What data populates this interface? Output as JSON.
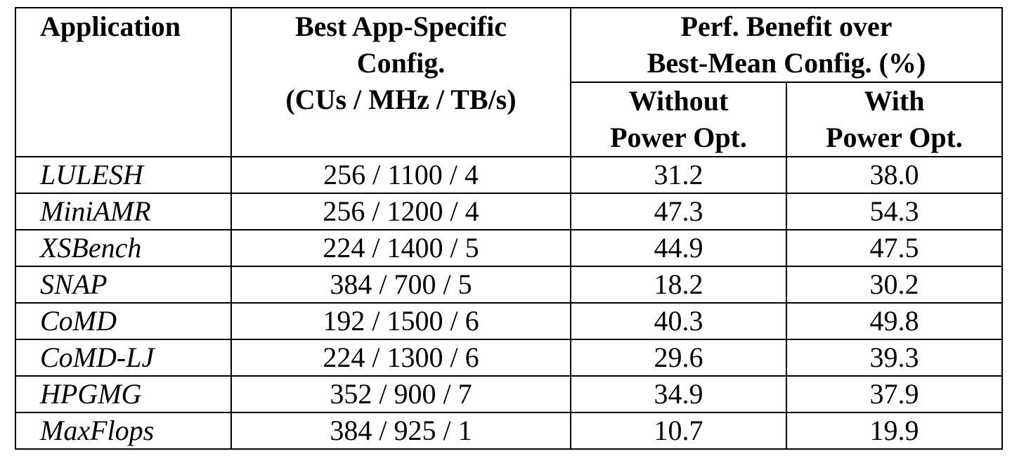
{
  "table": {
    "headers": {
      "application": "Application",
      "config_line1": "Best App-Specific",
      "config_line2": "Config.",
      "config_line3": "(CUs / MHz / TB/s)",
      "benefit_line1": "Perf. Benefit over",
      "benefit_line2": "Best-Mean Config. (%)",
      "without_line1": "Without",
      "without_line2": "Power Opt.",
      "with_line1": "With",
      "with_line2": "Power Opt."
    },
    "rows": [
      {
        "app": "LULESH",
        "config": "256 / 1100 / 4",
        "without": "31.2",
        "with": "38.0"
      },
      {
        "app": "MiniAMR",
        "config": "256 / 1200 / 4",
        "without": "47.3",
        "with": "54.3"
      },
      {
        "app": "XSBench",
        "config": "224 / 1400 / 5",
        "without": "44.9",
        "with": "47.5"
      },
      {
        "app": "SNAP",
        "config": "384 / 700 / 5",
        "without": "18.2",
        "with": "30.2"
      },
      {
        "app": "CoMD",
        "config": "192 / 1500 / 6",
        "without": "40.3",
        "with": "49.8"
      },
      {
        "app": "CoMD-LJ",
        "config": "224 / 1300 / 6",
        "without": "29.6",
        "with": "39.3"
      },
      {
        "app": "HPGMG",
        "config": "352 / 900 / 7",
        "without": "34.9",
        "with": "37.9"
      },
      {
        "app": "MaxFlops",
        "config": "384 / 925 / 1",
        "without": "10.7",
        "with": "19.9"
      }
    ]
  }
}
